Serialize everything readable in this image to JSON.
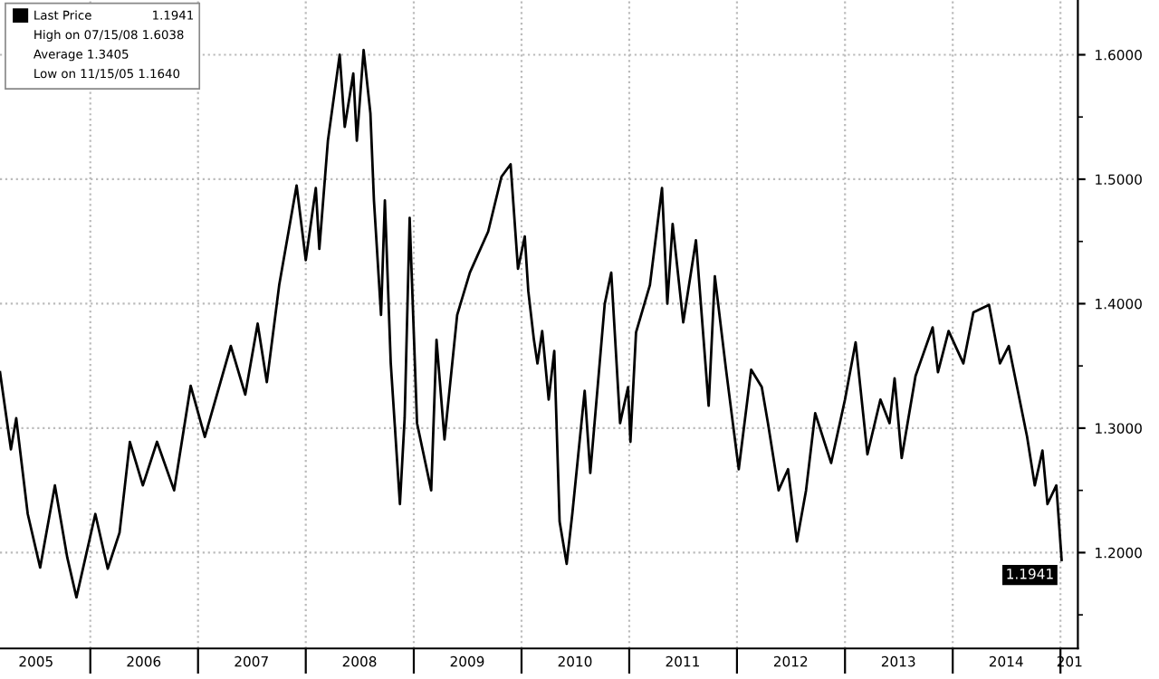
{
  "chart_data": {
    "type": "line",
    "x": [
      "2005-03-01",
      "2005-04-07",
      "2005-04-25",
      "2005-06-03",
      "2005-07-15",
      "2005-09-03",
      "2005-10-15",
      "2005-11-15",
      "2006-01-18",
      "2006-03-01",
      "2006-04-10",
      "2006-05-15",
      "2006-06-28",
      "2006-08-15",
      "2006-10-12",
      "2006-12-07",
      "2007-01-24",
      "2007-04-22",
      "2007-06-10",
      "2007-07-22",
      "2007-08-22",
      "2007-10-03",
      "2007-12-01",
      "2008-01-01",
      "2008-02-04",
      "2008-02-16",
      "2008-03-16",
      "2008-04-25",
      "2008-05-12",
      "2008-06-10",
      "2008-06-22",
      "2008-07-15",
      "2008-08-07",
      "2008-08-19",
      "2008-09-12",
      "2008-09-25",
      "2008-10-15",
      "2008-11-15",
      "2008-12-01",
      "2008-12-18",
      "2009-01-12",
      "2009-03-01",
      "2009-03-19",
      "2009-04-15",
      "2009-05-28",
      "2009-07-10",
      "2009-09-10",
      "2009-10-25",
      "2009-11-25",
      "2009-12-20",
      "2010-01-12",
      "2010-01-24",
      "2010-02-12",
      "2010-02-24",
      "2010-03-12",
      "2010-04-03",
      "2010-04-22",
      "2010-05-10",
      "2010-06-03",
      "2010-06-22",
      "2010-08-03",
      "2010-08-22",
      "2010-10-10",
      "2010-11-01",
      "2010-12-01",
      "2010-12-28",
      "2011-01-05",
      "2011-01-24",
      "2011-03-12",
      "2011-04-22",
      "2011-05-10",
      "2011-05-28",
      "2011-07-03",
      "2011-08-15",
      "2011-09-10",
      "2011-09-27",
      "2011-10-18",
      "2011-11-25",
      "2011-12-18",
      "2012-01-07",
      "2012-02-18",
      "2012-03-25",
      "2012-04-15",
      "2012-05-21",
      "2012-06-22",
      "2012-07-22",
      "2012-08-22",
      "2012-09-22",
      "2012-11-15",
      "2013-01-01",
      "2013-02-06",
      "2013-03-18",
      "2013-05-01",
      "2013-06-01",
      "2013-06-18",
      "2013-07-12",
      "2013-08-28",
      "2013-10-25",
      "2013-11-12",
      "2013-12-18",
      "2014-02-06",
      "2014-03-12",
      "2014-05-04",
      "2014-06-10",
      "2014-07-10",
      "2014-09-10",
      "2014-10-06",
      "2014-11-01",
      "2014-11-18",
      "2014-12-18",
      "2015-01-05"
    ],
    "series": [
      {
        "name": "Last Price",
        "color": "#000000",
        "values": [
          1.345,
          1.283,
          1.308,
          1.231,
          1.188,
          1.254,
          1.196,
          1.164,
          1.231,
          1.187,
          1.216,
          1.289,
          1.254,
          1.289,
          1.25,
          1.334,
          1.293,
          1.366,
          1.327,
          1.384,
          1.337,
          1.415,
          1.495,
          1.435,
          1.493,
          1.444,
          1.531,
          1.6,
          1.542,
          1.585,
          1.531,
          1.6038,
          1.553,
          1.483,
          1.391,
          1.483,
          1.352,
          1.239,
          1.308,
          1.469,
          1.304,
          1.25,
          1.371,
          1.291,
          1.391,
          1.425,
          1.458,
          1.502,
          1.512,
          1.428,
          1.454,
          1.41,
          1.371,
          1.352,
          1.378,
          1.323,
          1.362,
          1.225,
          1.191,
          1.231,
          1.33,
          1.264,
          1.4,
          1.425,
          1.304,
          1.333,
          1.289,
          1.377,
          1.415,
          1.493,
          1.4,
          1.464,
          1.385,
          1.451,
          1.371,
          1.318,
          1.422,
          1.347,
          1.304,
          1.267,
          1.347,
          1.333,
          1.304,
          1.25,
          1.267,
          1.209,
          1.25,
          1.312,
          1.272,
          1.323,
          1.369,
          1.279,
          1.323,
          1.304,
          1.34,
          1.276,
          1.342,
          1.381,
          1.345,
          1.378,
          1.352,
          1.393,
          1.399,
          1.352,
          1.366,
          1.293,
          1.254,
          1.282,
          1.239,
          1.254,
          1.1941
        ]
      }
    ],
    "xlim": [
      "2005-03-01",
      "2015-03-01"
    ],
    "xticks": [
      {
        "value": "2005-07-01",
        "label": "2005"
      },
      {
        "value": "2006-01-01",
        "label": null
      },
      {
        "value": "2006-07-01",
        "label": "2006"
      },
      {
        "value": "2007-01-01",
        "label": null
      },
      {
        "value": "2007-07-01",
        "label": "2007"
      },
      {
        "value": "2008-01-01",
        "label": null
      },
      {
        "value": "2008-07-01",
        "label": "2008"
      },
      {
        "value": "2009-01-01",
        "label": null
      },
      {
        "value": "2009-07-01",
        "label": "2009"
      },
      {
        "value": "2010-01-01",
        "label": null
      },
      {
        "value": "2010-07-01",
        "label": "2010"
      },
      {
        "value": "2011-01-01",
        "label": null
      },
      {
        "value": "2011-07-01",
        "label": "2011"
      },
      {
        "value": "2012-01-01",
        "label": null
      },
      {
        "value": "2012-07-01",
        "label": "2012"
      },
      {
        "value": "2013-01-01",
        "label": null
      },
      {
        "value": "2013-07-01",
        "label": "2013"
      },
      {
        "value": "2014-01-01",
        "label": null
      },
      {
        "value": "2014-07-01",
        "label": "2014"
      },
      {
        "value": "2015-01-01",
        "label": null
      },
      {
        "value": "2015-02-01",
        "label": "201"
      }
    ],
    "ylim": [
      1.123,
      1.644
    ],
    "yticks": [
      {
        "value": 1.15,
        "label": null
      },
      {
        "value": 1.2,
        "label": "1.2000"
      },
      {
        "value": 1.25,
        "label": null
      },
      {
        "value": 1.3,
        "label": "1.3000"
      },
      {
        "value": 1.35,
        "label": null
      },
      {
        "value": 1.4,
        "label": "1.4000"
      },
      {
        "value": 1.45,
        "label": null
      },
      {
        "value": 1.5,
        "label": "1.5000"
      },
      {
        "value": 1.55,
        "label": null
      },
      {
        "value": 1.6,
        "label": "1.6000"
      }
    ],
    "annotations": [
      "1.1941",
      "High on 07/15/08 1.6038",
      "Average 1.3405",
      "Low on 11/15/05 1.1640",
      {
        "text": "1.1941",
        "x": "2015-01-05",
        "y": 1.1941
      }
    ],
    "grid": true,
    "legend": "top left",
    "line_style": "solid",
    "marker": "none"
  }
}
